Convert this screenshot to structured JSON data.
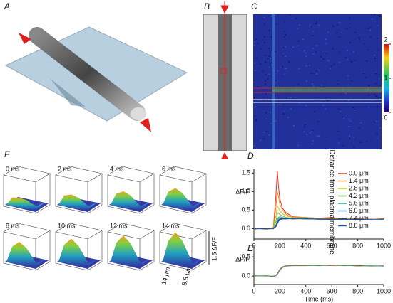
{
  "panel_labels": [
    "A",
    "B",
    "C",
    "D",
    "E",
    "F"
  ],
  "colorbar": {
    "lim": [
      0,
      2
    ],
    "ticks": [
      0,
      1,
      2
    ]
  },
  "surface_panels": {
    "labels": [
      "0 ms",
      "2 ms",
      "4 ms",
      "6 ms",
      "8 ms",
      "10 ms",
      "12 ms",
      "14 ms"
    ],
    "amplitude_scale": "1.5 ΔF/F",
    "x_scale": "14 μm",
    "y_scale": "8.8 μm"
  },
  "chart_data": [
    {
      "type": "line",
      "ylabel": "ΔF/F",
      "legend_title": "Distance from plasma membrane",
      "x": [
        0,
        100,
        150,
        170,
        180,
        190,
        200,
        220,
        250,
        300,
        400,
        500,
        600,
        700,
        800,
        900,
        1000
      ],
      "xlim": [
        0,
        1000
      ],
      "xticks": [
        0,
        200,
        400,
        600,
        800,
        1000
      ],
      "ylim": [
        -0.28,
        1.6
      ],
      "yticks": [
        {
          "value": 0,
          "label": "0.0"
        },
        {
          "value": 0.5,
          "label": "0.5"
        },
        {
          "value": 1,
          "label": "1.0"
        },
        {
          "value": 1.5,
          "label": "1.5"
        }
      ],
      "series": [
        {
          "name": "0.0 μm",
          "color": "#e8312a",
          "values": [
            0.02,
            -0.01,
            0.03,
            0.9,
            1.55,
            1.1,
            0.8,
            0.55,
            0.42,
            0.32,
            0.3,
            0.28,
            0.3,
            0.26,
            0.27,
            0.25,
            0.27
          ]
        },
        {
          "name": "1.4 μm",
          "color": "#f08a1c",
          "values": [
            0.0,
            0.02,
            0.0,
            0.6,
            1.0,
            0.85,
            0.65,
            0.5,
            0.38,
            0.3,
            0.3,
            0.27,
            0.28,
            0.26,
            0.25,
            0.26,
            0.25
          ]
        },
        {
          "name": "2.8 μm",
          "color": "#c8c020",
          "values": [
            -0.02,
            0.01,
            0.02,
            0.35,
            0.6,
            0.55,
            0.48,
            0.4,
            0.34,
            0.3,
            0.28,
            0.27,
            0.26,
            0.27,
            0.25,
            0.24,
            0.25
          ]
        },
        {
          "name": "4.2 μm",
          "color": "#6cbf3a",
          "values": [
            0.01,
            -0.02,
            0.01,
            0.2,
            0.4,
            0.42,
            0.38,
            0.34,
            0.3,
            0.28,
            0.29,
            0.26,
            0.27,
            0.25,
            0.26,
            0.24,
            0.26
          ]
        },
        {
          "name": "5.6 μm",
          "color": "#2aa870",
          "values": [
            0.0,
            0.01,
            -0.01,
            0.1,
            0.25,
            0.3,
            0.32,
            0.3,
            0.28,
            0.27,
            0.28,
            0.27,
            0.25,
            0.26,
            0.24,
            0.25,
            0.24
          ]
        },
        {
          "name": "6.0 μm",
          "color": "#2a9ed8",
          "values": [
            0.01,
            0.0,
            0.0,
            0.08,
            0.2,
            0.26,
            0.28,
            0.29,
            0.28,
            0.27,
            0.26,
            0.26,
            0.25,
            0.25,
            0.24,
            0.25,
            0.23
          ]
        },
        {
          "name": "7.4 μm",
          "color": "#333344",
          "values": [
            -0.01,
            0.01,
            0.01,
            0.06,
            0.15,
            0.22,
            0.26,
            0.27,
            0.27,
            0.26,
            0.27,
            0.25,
            0.26,
            0.24,
            0.25,
            0.23,
            0.24
          ]
        },
        {
          "name": "8.8 μm",
          "color": "#2a4fbf",
          "values": [
            0.0,
            -0.01,
            0.0,
            0.05,
            0.12,
            0.2,
            0.24,
            0.26,
            0.26,
            0.27,
            0.26,
            0.26,
            0.24,
            0.25,
            0.24,
            0.24,
            0.23
          ]
        }
      ]
    },
    {
      "type": "line",
      "ylabel": "ΔF/F",
      "xlabel": "Time (ms)",
      "x": [
        0,
        100,
        150,
        170,
        180,
        190,
        200,
        220,
        250,
        300,
        400,
        500,
        600,
        700,
        800,
        900,
        1000
      ],
      "xlim": [
        0,
        1000
      ],
      "xticks": [
        0,
        200,
        400,
        600,
        800,
        1000
      ],
      "ylim": [
        -0.22,
        0.8
      ],
      "yticks": [
        {
          "value": 0,
          "label": "0.0"
        },
        {
          "value": 0.5,
          "label": "0.5"
        }
      ],
      "series": [
        {
          "color": "#e8312a",
          "values": [
            0.0,
            0.01,
            -0.02,
            0.02,
            0.06,
            0.12,
            0.18,
            0.24,
            0.27,
            0.28,
            0.28,
            0.27,
            0.29,
            0.27,
            0.28,
            0.26,
            0.27
          ]
        },
        {
          "color": "#2aa870",
          "values": [
            0.01,
            0.0,
            0.0,
            0.01,
            0.04,
            0.1,
            0.16,
            0.22,
            0.26,
            0.27,
            0.27,
            0.28,
            0.27,
            0.28,
            0.26,
            0.27,
            0.26
          ]
        }
      ]
    }
  ]
}
